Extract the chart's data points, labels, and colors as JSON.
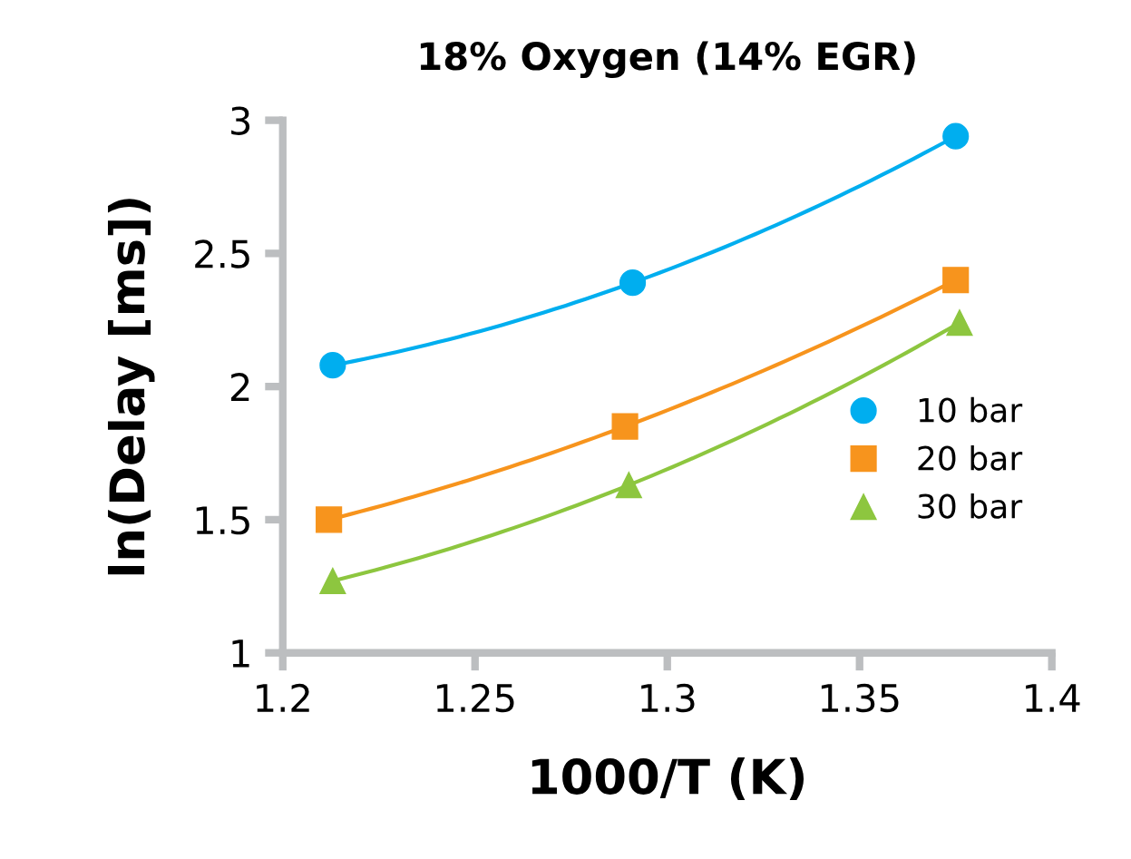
{
  "chart_data": {
    "type": "line",
    "title": "18% Oxygen (14% EGR)",
    "xlabel": "1000/T (K)",
    "ylabel": "ln(Delay [ms])",
    "xlim": [
      1.2,
      1.4
    ],
    "xticks": [
      1.2,
      1.25,
      1.3,
      1.35,
      1.4
    ],
    "ylim": [
      1,
      3
    ],
    "yticks": [
      1,
      1.5,
      2,
      2.5,
      3
    ],
    "grid": false,
    "legend": "right",
    "series": [
      {
        "name": "10 bar",
        "color": "#00aeef",
        "marker": "circle",
        "x": [
          1.213,
          1.291,
          1.375
        ],
        "values": [
          2.08,
          2.39,
          2.94
        ]
      },
      {
        "name": "20 bar",
        "color": "#f7941d",
        "marker": "square",
        "x": [
          1.212,
          1.289,
          1.375
        ],
        "values": [
          1.5,
          1.85,
          2.4
        ]
      },
      {
        "name": "30 bar",
        "color": "#8dc63f",
        "marker": "triangle",
        "x": [
          1.213,
          1.29,
          1.376
        ],
        "values": [
          1.27,
          1.63,
          2.24
        ]
      }
    ]
  }
}
